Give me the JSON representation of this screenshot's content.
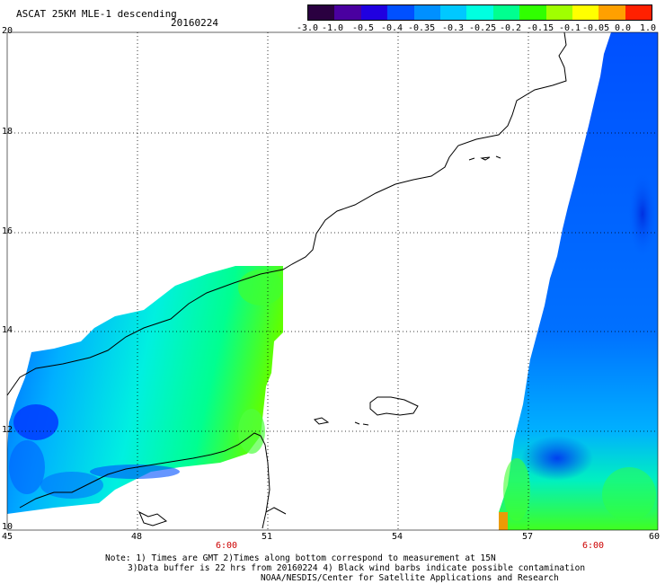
{
  "header": {
    "title": "ASCAT 25KM MLE-1 descending",
    "date": "20160224"
  },
  "colorbar": {
    "labels": [
      "-3.0",
      "-1.0",
      "-0.5",
      "-0.4",
      "-0.35",
      "-0.3",
      "-0.25",
      "-0.2",
      "-0.15",
      "-0.1",
      "-0.05",
      "0.0",
      "1.0"
    ],
    "colors": [
      "#2a0040",
      "#4a00a0",
      "#2000e0",
      "#0050ff",
      "#0090ff",
      "#00c8ff",
      "#00ffe0",
      "#00ff90",
      "#30ff00",
      "#a0ff00",
      "#ffff00",
      "#ffa000",
      "#ff2000"
    ]
  },
  "axes": {
    "lat_labels": [
      "20",
      "18",
      "16",
      "14",
      "12",
      "10"
    ],
    "lon_labels": [
      "45",
      "48",
      "51",
      "54",
      "57",
      "60"
    ],
    "time_labels": [
      "6:00",
      "6:00"
    ]
  },
  "notes": {
    "line1": "Note: 1) Times are GMT 2)Times along bottom correspond to measurement at 15N",
    "line2": "3)Data buffer is 22 hrs from 20160224 4) Black wind barbs indicate possible contamination",
    "line3": "NOAA/NESDIS/Center for Satellite Applications and Research"
  }
}
